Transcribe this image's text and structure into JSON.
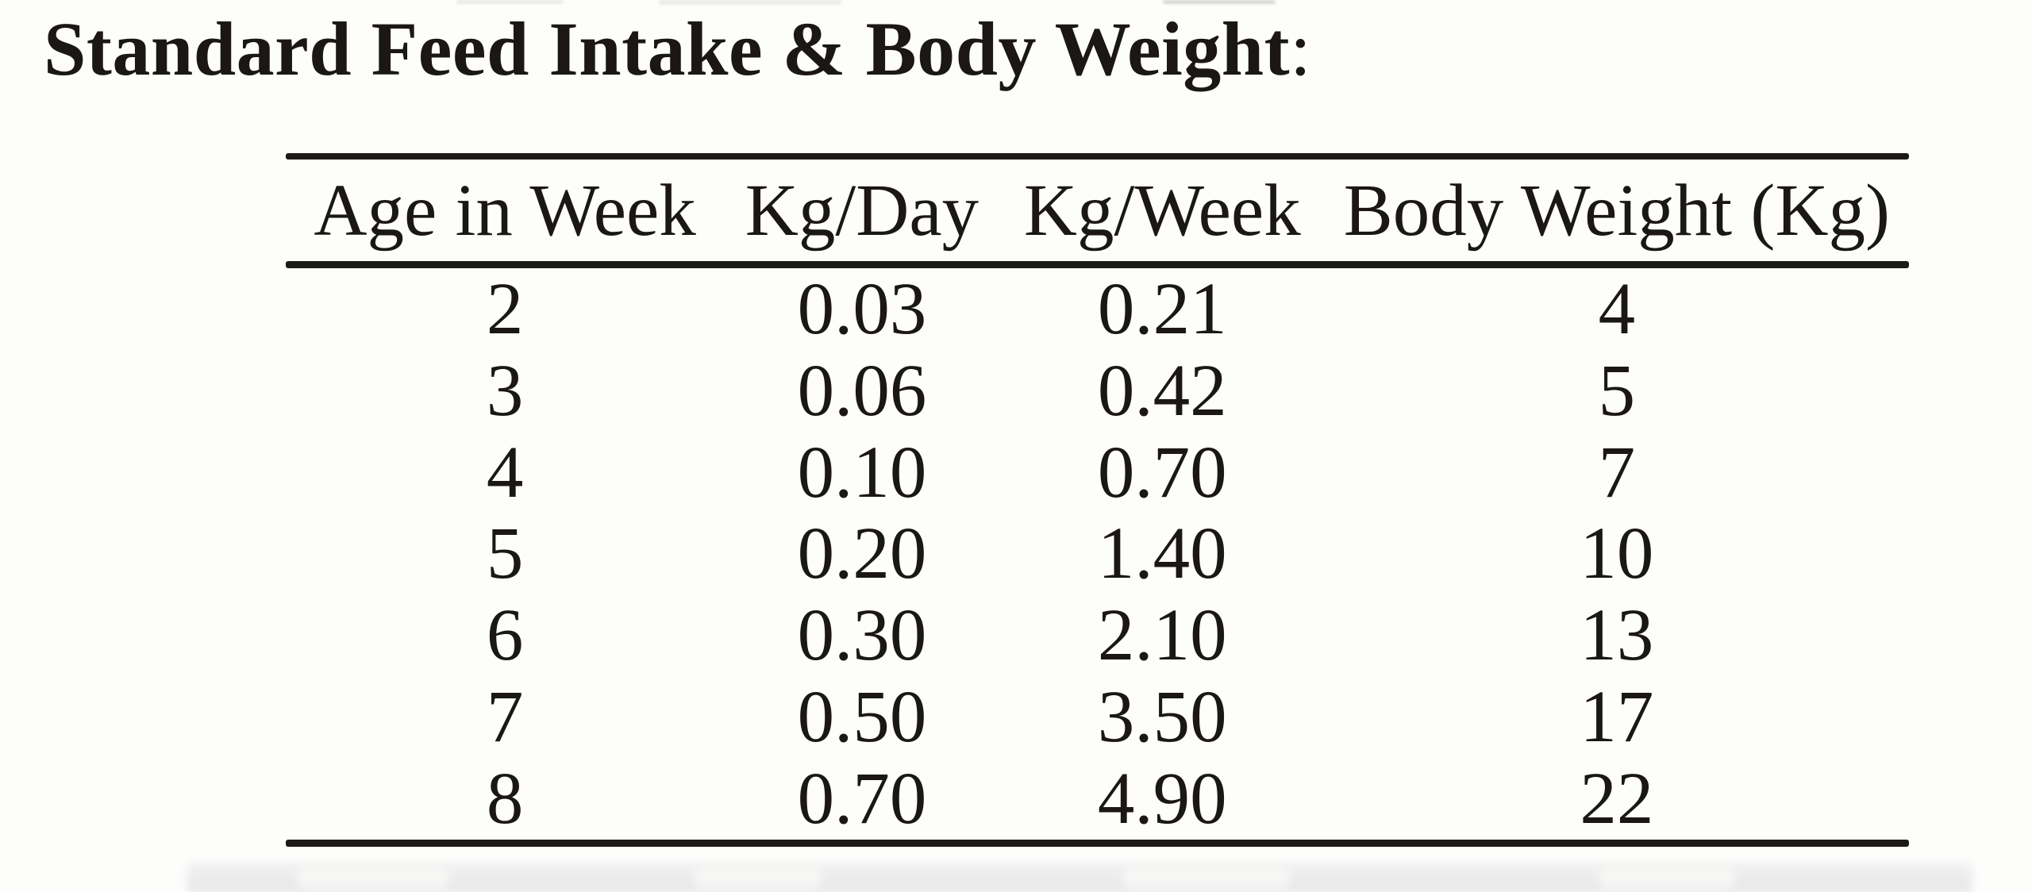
{
  "colors": {
    "ink": "#1a1714",
    "rule": "#1c1a18",
    "background": "#fdfdfc",
    "band": "#ebebeb"
  },
  "title": {
    "text": "Standard Feed Intake & Body Weight",
    "suffix": ":"
  },
  "table": {
    "headers": [
      "Age in Week",
      "Kg/Day",
      "Kg/Week",
      "Body Weight (Kg)"
    ],
    "rows": [
      [
        "2",
        "0.03",
        "0.21",
        "4"
      ],
      [
        "3",
        "0.06",
        "0.42",
        "5"
      ],
      [
        "4",
        "0.10",
        "0.70",
        "7"
      ],
      [
        "5",
        "0.20",
        "1.40",
        "10"
      ],
      [
        "6",
        "0.30",
        "2.10",
        "13"
      ],
      [
        "7",
        "0.50",
        "3.50",
        "17"
      ],
      [
        "8",
        "0.70",
        "4.90",
        "22"
      ]
    ]
  }
}
